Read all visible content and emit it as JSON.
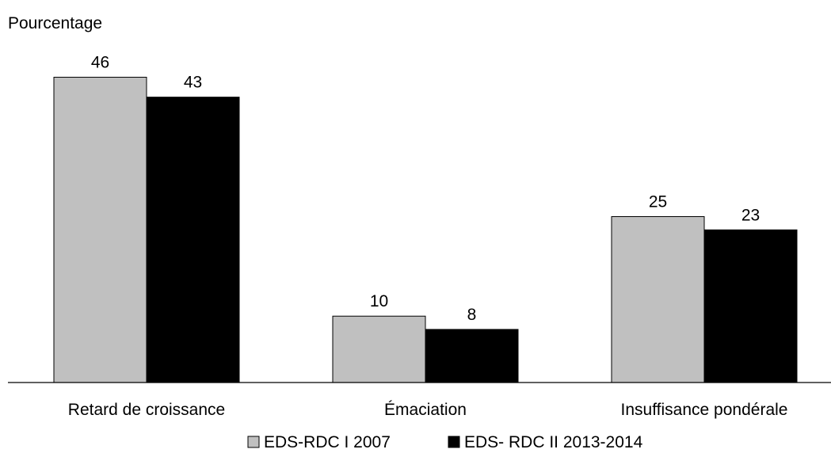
{
  "chart_data": {
    "type": "bar",
    "ylabel": "Pourcentage",
    "categories": [
      "Retard de croissance",
      "Émaciation",
      "Insuffisance pondérale"
    ],
    "series": [
      {
        "name": "EDS-RDC I 2007",
        "values": [
          46,
          10,
          25
        ],
        "color": "#c0c0c0"
      },
      {
        "name": "EDS- RDC II 2013-2014",
        "values": [
          43,
          8,
          23
        ],
        "color": "#000000"
      }
    ],
    "ylim": [
      0,
      50
    ],
    "grid": false,
    "legend_position": "bottom"
  },
  "colors": {
    "bar_stroke": "#000000",
    "axis": "#000000",
    "background": "#ffffff"
  }
}
